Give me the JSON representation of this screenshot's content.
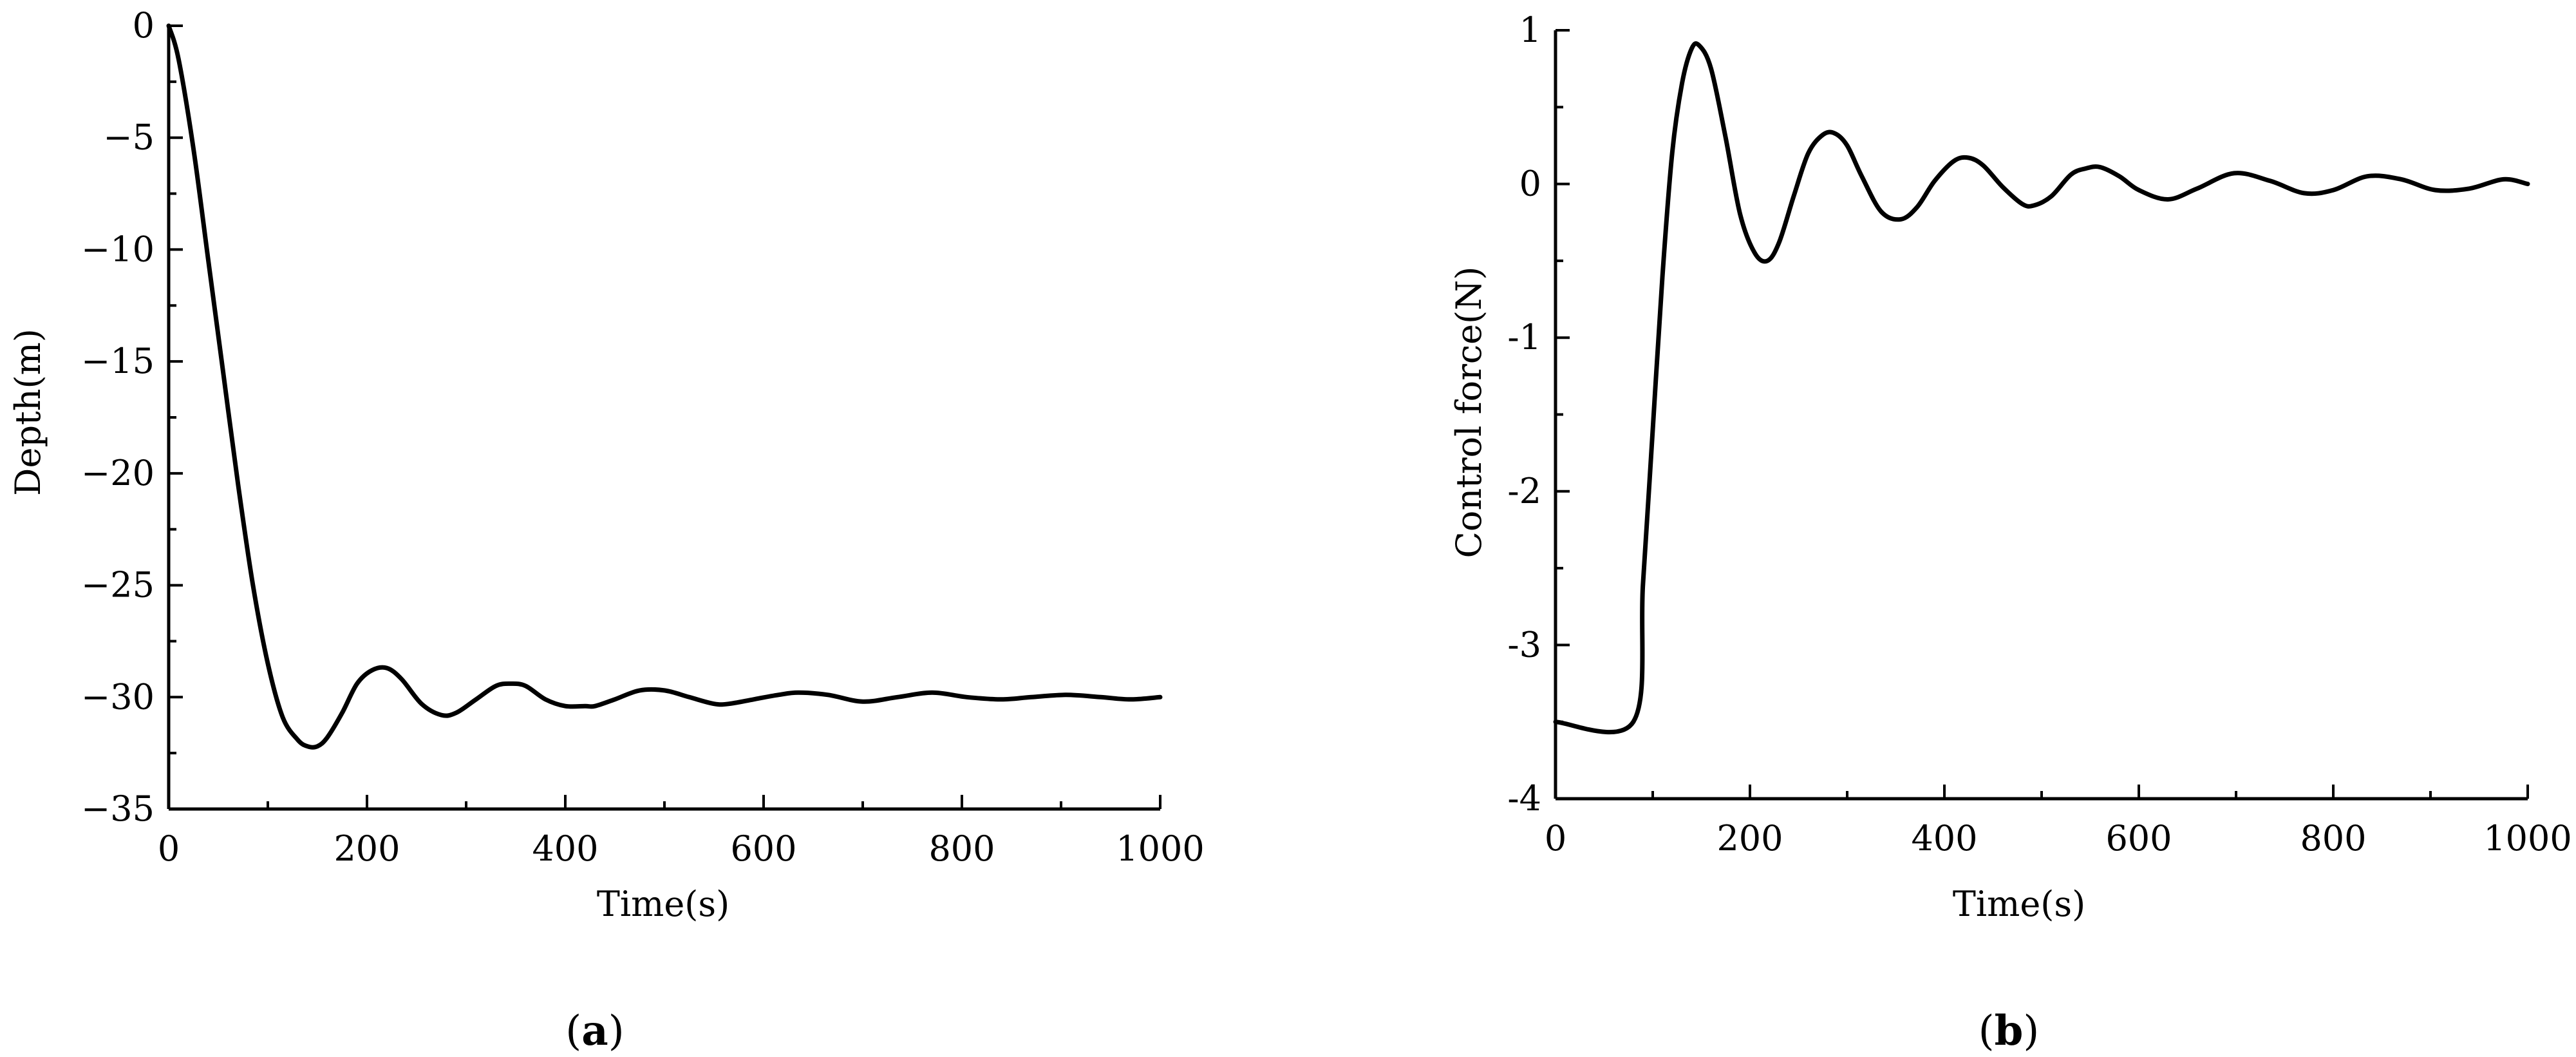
{
  "panels": [
    {
      "label_open": "(",
      "label_letter": "a",
      "label_close": ")"
    },
    {
      "label_open": "(",
      "label_letter": "b",
      "label_close": ")"
    }
  ],
  "chart_data": [
    {
      "type": "line",
      "title": "",
      "xlabel": "Time(s)",
      "ylabel": "Depth(m)",
      "xlim": [
        0,
        1000
      ],
      "ylim": [
        -35,
        0
      ],
      "x_ticks": [
        0,
        200,
        400,
        600,
        800,
        1000
      ],
      "x_tick_labels": [
        "0",
        "200",
        "400",
        "600",
        "800",
        "1000"
      ],
      "y_ticks": [
        0,
        -5,
        -10,
        -15,
        -20,
        -25,
        -30,
        -35
      ],
      "y_tick_labels": [
        "0",
        "−5",
        "−10",
        "−15",
        "−20",
        "−25",
        "−30",
        "−35"
      ],
      "grid": false,
      "line_color": "#000000",
      "series": [
        {
          "x": [
            0,
            10,
            25,
            40,
            55,
            70,
            85,
            100,
            115,
            130,
            140,
            150,
            160,
            175,
            190,
            205,
            220,
            235,
            255,
            275,
            290,
            310,
            330,
            345,
            360,
            380,
            400,
            420,
            430,
            450,
            475,
            500,
            525,
            550,
            565,
            590,
            615,
            635,
            665,
            700,
            735,
            770,
            805,
            840,
            870,
            905,
            940,
            970,
            1000
          ],
          "y": [
            0,
            -1.5,
            -5.5,
            -10.5,
            -15.5,
            -20.5,
            -25,
            -28.5,
            -30.9,
            -31.9,
            -32.2,
            -32.2,
            -31.8,
            -30.7,
            -29.4,
            -28.8,
            -28.7,
            -29.2,
            -30.3,
            -30.8,
            -30.7,
            -30.1,
            -29.5,
            -29.4,
            -29.5,
            -30.1,
            -30.4,
            -30.4,
            -30.4,
            -30.1,
            -29.7,
            -29.7,
            -30.0,
            -30.3,
            -30.3,
            -30.1,
            -29.9,
            -29.8,
            -29.9,
            -30.2,
            -30.0,
            -29.8,
            -30.0,
            -30.1,
            -30.0,
            -29.9,
            -30.0,
            -30.1,
            -30.0
          ]
        }
      ]
    },
    {
      "type": "line",
      "title": "",
      "xlabel": "Time(s)",
      "ylabel": "Control force(N)",
      "xlim": [
        0,
        1000
      ],
      "ylim": [
        -4,
        1
      ],
      "x_ticks": [
        0,
        200,
        400,
        600,
        800,
        1000
      ],
      "x_tick_labels": [
        "0",
        "200",
        "400",
        "600",
        "800",
        "1000"
      ],
      "y_ticks": [
        1,
        0,
        -1,
        -2,
        -3,
        -4
      ],
      "y_tick_labels": [
        "1",
        "0",
        "-1",
        "-2",
        "-3",
        "-4"
      ],
      "grid": false,
      "line_color": "#000000",
      "series": [
        {
          "x": [
            0,
            80,
            90,
            100,
            110,
            120,
            130,
            140,
            148,
            160,
            175,
            190,
            205,
            218,
            230,
            245,
            260,
            275,
            287,
            300,
            315,
            335,
            355,
            372,
            390,
            410,
            425,
            440,
            460,
            480,
            492,
            510,
            530,
            545,
            560,
            580,
            600,
            630,
            660,
            698,
            735,
            770,
            800,
            835,
            870,
            905,
            940,
            975,
            1000
          ],
          "y": [
            -3.5,
            -3.5,
            -2.6,
            -1.6,
            -0.6,
            0.2,
            0.65,
            0.88,
            0.9,
            0.75,
            0.3,
            -0.2,
            -0.45,
            -0.5,
            -0.38,
            -0.08,
            0.2,
            0.32,
            0.33,
            0.25,
            0.05,
            -0.18,
            -0.23,
            -0.15,
            0.02,
            0.15,
            0.17,
            0.12,
            -0.02,
            -0.13,
            -0.14,
            -0.08,
            0.06,
            0.1,
            0.11,
            0.05,
            -0.04,
            -0.1,
            -0.03,
            0.07,
            0.02,
            -0.06,
            -0.04,
            0.05,
            0.03,
            -0.04,
            -0.03,
            0.03,
            0.0
          ]
        }
      ]
    }
  ]
}
